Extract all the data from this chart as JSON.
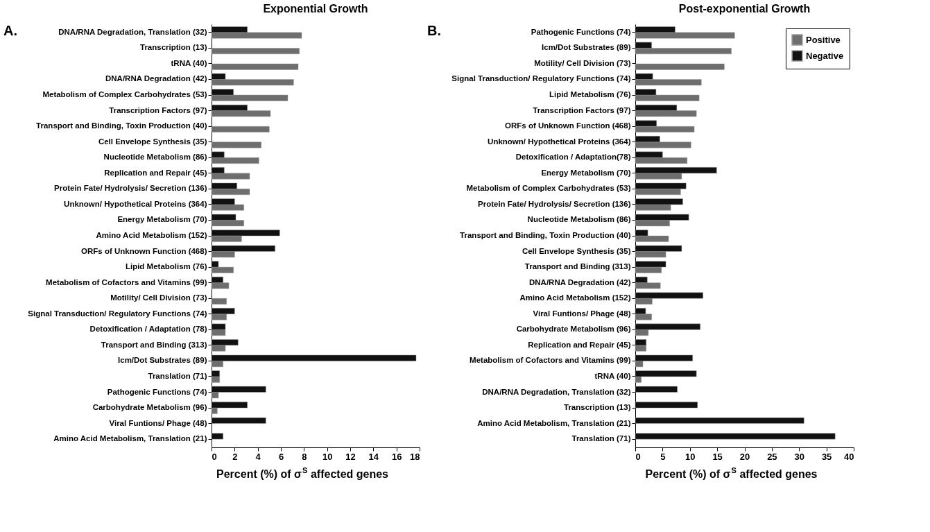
{
  "chart_data": [
    {
      "type": "bar",
      "orientation": "horizontal",
      "title": "Exponential Growth",
      "xlabel": "Percent (%) of σ$^{S}$ affected genes",
      "annotations": [
        "A."
      ],
      "categories": [
        "DNA/RNA Degradation, Translation (32)",
        "Transcription (13)",
        "tRNA (40)",
        "DNA/RNA Degradation (42)",
        "Metabolism of Complex Carbohydrates (53)",
        "Transcription Factors (97)",
        "Transport and Binding, Toxin Production (40)",
        "Cell Envelope Synthesis (35)",
        "Nucleotide Metabolism (86)",
        "Replication and Repair (45)",
        "Protein Fate/ Hydrolysis/ Secretion (136)",
        "Unknown/ Hypothetical Proteins (364)",
        "Energy Metabolism (70)",
        "Amino Acid Metabolism (152)",
        "ORFs of Unknown Function (468)",
        "Lipid Metabolism (76)",
        "Metabolism of Cofactors and Vitamins (99)",
        "Motility/ Cell Division (73)",
        "Signal Transduction/ Regulatory Functions (74)",
        "Detoxification / Adaptation (78)",
        "Transport and Binding (313)",
        "Icm/Dot Substrates (89)",
        "Translation (71)",
        "Pathogenic Functions (74)",
        "Carbohydrate Metabolism (96)",
        "Viral Funtions/ Phage (48)",
        "Amino Acid Metabolism, Translation (21)"
      ],
      "series": [
        {
          "color": "#6e6e6e",
          "values": [
            7.8,
            7.6,
            7.5,
            7.1,
            6.6,
            5.1,
            5.0,
            4.3,
            4.1,
            3.3,
            3.3,
            2.8,
            2.8,
            2.6,
            2.0,
            1.9,
            1.5,
            1.3,
            1.3,
            1.2,
            1.2,
            1.0,
            0.7,
            0.6,
            0.5,
            null,
            null
          ]
        },
        {
          "color": "#111111",
          "values": [
            3.1,
            null,
            null,
            1.2,
            1.9,
            3.1,
            null,
            null,
            1.1,
            1.1,
            2.2,
            2.0,
            2.1,
            5.9,
            5.5,
            0.6,
            1.0,
            null,
            2.0,
            1.2,
            2.3,
            17.7,
            0.7,
            4.7,
            3.1,
            4.7,
            1.0
          ]
        }
      ],
      "xlim": [
        0,
        18
      ],
      "xticks": [
        0,
        2,
        4,
        6,
        8,
        10,
        12,
        14,
        16,
        18
      ],
      "grid": false,
      "legend": false
    },
    {
      "type": "bar",
      "orientation": "horizontal",
      "title": "Post-exponential Growth",
      "xlabel": "Percent (%) of σ$^{S}$ affected genes",
      "annotations": [
        "B."
      ],
      "categories": [
        "Pathogenic Functions (74)",
        "Icm/Dot Substrates (89)",
        "Motility/ Cell Division (73)",
        "Signal Transduction/ Regulatory Functions (74)",
        "Lipid Metabolism (76)",
        "Transcription Factors (97)",
        "ORFs of Unknown Function (468)",
        "Unknown/ Hypothetical Proteins (364)",
        "Detoxification / Adaptation(78)",
        "Energy Metabolism (70)",
        "Metabolism of Complex Carbohydrates (53)",
        "Protein Fate/ Hydrolysis/ Secretion (136)",
        "Nucleotide Metabolism (86)",
        "Transport and Binding, Toxin Production (40)",
        "Cell Envelope Synthesis (35)",
        "Transport and Binding (313)",
        "DNA/RNA Degradation (42)",
        "Amino Acid Metabolism (152)",
        "Viral Funtions/ Phage (48)",
        "Carbohydrate Metabolism (96)",
        "Replication and Repair (45)",
        "Metabolism of Cofactors and Vitamins (99)",
        "tRNA (40)",
        "DNA/RNA Degradation, Translation (32)",
        "Transcription (13)",
        "Amino Acid Metabolism, Translation (21)",
        "Translation (71)"
      ],
      "series": [
        {
          "name": "Positive",
          "color": "#6e6e6e",
          "values": [
            18.2,
            17.6,
            16.3,
            12.1,
            11.7,
            11.2,
            10.8,
            10.2,
            9.5,
            8.5,
            8.3,
            6.5,
            6.3,
            6.1,
            5.6,
            4.8,
            4.6,
            3.1,
            3.0,
            2.4,
            2.0,
            1.4,
            1.1,
            null,
            null,
            null,
            null
          ]
        },
        {
          "name": "Negative",
          "color": "#111111",
          "values": [
            7.3,
            3.0,
            null,
            3.2,
            3.8,
            7.6,
            3.9,
            4.5,
            5.0,
            14.9,
            9.3,
            8.7,
            9.8,
            2.3,
            8.5,
            5.6,
            2.2,
            12.4,
            1.9,
            11.9,
            2.0,
            10.5,
            11.2,
            7.7,
            11.4,
            30.9,
            36.6
          ]
        }
      ],
      "xlim": [
        0,
        40
      ],
      "xticks": [
        0,
        5,
        10,
        15,
        20,
        25,
        30,
        35,
        40
      ],
      "grid": false,
      "legend": "top right"
    }
  ]
}
